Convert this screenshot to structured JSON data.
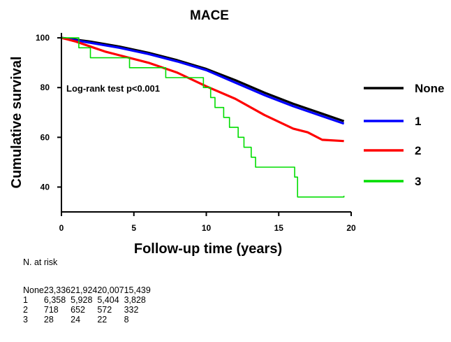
{
  "chart_data": {
    "type": "line",
    "title": "MACE",
    "xlabel": "Follow-up time (years)",
    "ylabel": "Cumulative survival",
    "xlim": [
      0,
      20
    ],
    "ylim": [
      30,
      102
    ],
    "x_ticks": [
      "0",
      "5",
      "10",
      "15",
      "20"
    ],
    "y_ticks": [
      "40",
      "60",
      "80",
      "100"
    ],
    "x_tick_values": [
      0,
      5,
      10,
      15,
      20
    ],
    "y_tick_values": [
      40,
      60,
      80,
      100
    ],
    "annotation": "Log-rank test p<0.001",
    "legend_position": "right",
    "series": [
      {
        "name": "None",
        "color": "#000000",
        "step": false,
        "points": [
          [
            0,
            100
          ],
          [
            2,
            98.5
          ],
          [
            4,
            96.5
          ],
          [
            6,
            94
          ],
          [
            8,
            91
          ],
          [
            10,
            87.5
          ],
          [
            12,
            83
          ],
          [
            14,
            78
          ],
          [
            16,
            73.5
          ],
          [
            18,
            69.5
          ],
          [
            19.5,
            66.5
          ]
        ]
      },
      {
        "name": "1",
        "color": "#0000ff",
        "step": false,
        "points": [
          [
            0,
            100
          ],
          [
            2,
            98
          ],
          [
            4,
            96
          ],
          [
            6,
            93.5
          ],
          [
            8,
            90.5
          ],
          [
            10,
            87
          ],
          [
            12,
            82
          ],
          [
            14,
            77
          ],
          [
            16,
            72.5
          ],
          [
            18,
            68.5
          ],
          [
            19.5,
            65.5
          ]
        ]
      },
      {
        "name": "2",
        "color": "#ff0000",
        "step": false,
        "points": [
          [
            0,
            100
          ],
          [
            1,
            98.5
          ],
          [
            2,
            96.5
          ],
          [
            3,
            94.5
          ],
          [
            4,
            93
          ],
          [
            6,
            90
          ],
          [
            8,
            86
          ],
          [
            10,
            80.5
          ],
          [
            12,
            75.5
          ],
          [
            14,
            69
          ],
          [
            16,
            63.5
          ],
          [
            17,
            62
          ],
          [
            18,
            59
          ],
          [
            19.5,
            58.5
          ]
        ]
      },
      {
        "name": "3",
        "color": "#00dd00",
        "step": true,
        "points": [
          [
            0,
            100
          ],
          [
            1.2,
            96
          ],
          [
            2,
            92
          ],
          [
            4.7,
            88
          ],
          [
            7.2,
            84
          ],
          [
            9.8,
            80
          ],
          [
            10.3,
            76
          ],
          [
            10.6,
            72
          ],
          [
            11.2,
            68
          ],
          [
            11.6,
            64
          ],
          [
            12.2,
            60
          ],
          [
            12.6,
            56
          ],
          [
            13.1,
            52
          ],
          [
            13.4,
            48
          ],
          [
            16.1,
            44
          ],
          [
            16.3,
            36
          ],
          [
            19.5,
            36.5
          ]
        ]
      }
    ],
    "number_at_risk": {
      "heading": "N. at risk",
      "rows": [
        {
          "label": "None",
          "values": [
            "23,336",
            "21,924",
            "20,007",
            "15,439"
          ]
        },
        {
          "label": "1",
          "values": [
            "6,358",
            "5,928",
            "5,404",
            "3,828"
          ]
        },
        {
          "label": "2",
          "values": [
            "718",
            "652",
            "572",
            "332"
          ]
        },
        {
          "label": "3",
          "values": [
            "28",
            "24",
            "22",
            "8"
          ]
        }
      ]
    }
  }
}
